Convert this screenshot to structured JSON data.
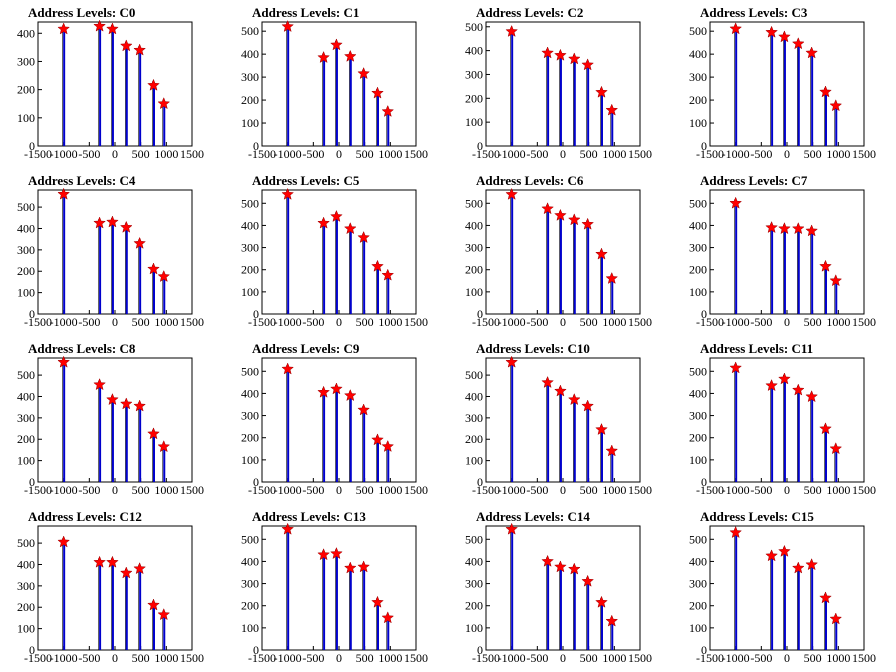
{
  "colors": {
    "bar": "#0000cc",
    "marker": "#ff0000",
    "axis": "#000000"
  },
  "chart_data": [
    {
      "type": "bar",
      "title": "Address Levels: C0",
      "xlim": [
        -1500,
        1500
      ],
      "ylim": [
        0,
        440
      ],
      "xticks": [
        -1500,
        -1000,
        -500,
        0,
        500,
        1000,
        1500
      ],
      "yticks": [
        0,
        100,
        200,
        300,
        400
      ],
      "peaks": [
        {
          "x": -1000,
          "y": 415
        },
        {
          "x": -300,
          "y": 425
        },
        {
          "x": -50,
          "y": 415
        },
        {
          "x": 220,
          "y": 355
        },
        {
          "x": 480,
          "y": 340
        },
        {
          "x": 750,
          "y": 215
        },
        {
          "x": 950,
          "y": 150
        }
      ]
    },
    {
      "type": "bar",
      "title": "Address Levels: C1",
      "xlim": [
        -1500,
        1500
      ],
      "ylim": [
        0,
        540
      ],
      "xticks": [
        -1500,
        -1000,
        -500,
        0,
        500,
        1000,
        1500
      ],
      "yticks": [
        0,
        100,
        200,
        300,
        400,
        500
      ],
      "peaks": [
        {
          "x": -1000,
          "y": 520
        },
        {
          "x": -300,
          "y": 385
        },
        {
          "x": -50,
          "y": 440
        },
        {
          "x": 220,
          "y": 390
        },
        {
          "x": 480,
          "y": 315
        },
        {
          "x": 750,
          "y": 230
        },
        {
          "x": 950,
          "y": 150
        }
      ]
    },
    {
      "type": "bar",
      "title": "Address Levels: C2",
      "xlim": [
        -1500,
        1500
      ],
      "ylim": [
        0,
        520
      ],
      "xticks": [
        -1500,
        -1000,
        -500,
        0,
        500,
        1000,
        1500
      ],
      "yticks": [
        0,
        100,
        200,
        300,
        400,
        500
      ],
      "peaks": [
        {
          "x": -1000,
          "y": 480
        },
        {
          "x": -300,
          "y": 390
        },
        {
          "x": -50,
          "y": 380
        },
        {
          "x": 220,
          "y": 365
        },
        {
          "x": 480,
          "y": 340
        },
        {
          "x": 750,
          "y": 225
        },
        {
          "x": 950,
          "y": 150
        }
      ]
    },
    {
      "type": "bar",
      "title": "Address Levels: C3",
      "xlim": [
        -1500,
        1500
      ],
      "ylim": [
        0,
        540
      ],
      "xticks": [
        -1500,
        -1000,
        -500,
        0,
        500,
        1000,
        1500
      ],
      "yticks": [
        0,
        100,
        200,
        300,
        400,
        500
      ],
      "peaks": [
        {
          "x": -1000,
          "y": 510
        },
        {
          "x": -300,
          "y": 495
        },
        {
          "x": -50,
          "y": 475
        },
        {
          "x": 220,
          "y": 445
        },
        {
          "x": 480,
          "y": 405
        },
        {
          "x": 750,
          "y": 235
        },
        {
          "x": 950,
          "y": 175
        }
      ]
    },
    {
      "type": "bar",
      "title": "Address Levels: C4",
      "xlim": [
        -1500,
        1500
      ],
      "ylim": [
        0,
        580
      ],
      "xticks": [
        -1500,
        -1000,
        -500,
        0,
        500,
        1000,
        1500
      ],
      "yticks": [
        0,
        100,
        200,
        300,
        400,
        500
      ],
      "peaks": [
        {
          "x": -1000,
          "y": 560
        },
        {
          "x": -300,
          "y": 425
        },
        {
          "x": -50,
          "y": 430
        },
        {
          "x": 220,
          "y": 405
        },
        {
          "x": 480,
          "y": 330
        },
        {
          "x": 750,
          "y": 210
        },
        {
          "x": 950,
          "y": 175
        }
      ]
    },
    {
      "type": "bar",
      "title": "Address Levels: C5",
      "xlim": [
        -1500,
        1500
      ],
      "ylim": [
        0,
        560
      ],
      "xticks": [
        -1500,
        -1000,
        -500,
        0,
        500,
        1000,
        1500
      ],
      "yticks": [
        0,
        100,
        200,
        300,
        400,
        500
      ],
      "peaks": [
        {
          "x": -1000,
          "y": 540
        },
        {
          "x": -300,
          "y": 410
        },
        {
          "x": -50,
          "y": 440
        },
        {
          "x": 220,
          "y": 385
        },
        {
          "x": 480,
          "y": 345
        },
        {
          "x": 750,
          "y": 215
        },
        {
          "x": 950,
          "y": 175
        }
      ]
    },
    {
      "type": "bar",
      "title": "Address Levels: C6",
      "xlim": [
        -1500,
        1500
      ],
      "ylim": [
        0,
        560
      ],
      "xticks": [
        -1500,
        -1000,
        -500,
        0,
        500,
        1000,
        1500
      ],
      "yticks": [
        0,
        100,
        200,
        300,
        400,
        500
      ],
      "peaks": [
        {
          "x": -1000,
          "y": 540
        },
        {
          "x": -300,
          "y": 475
        },
        {
          "x": -50,
          "y": 445
        },
        {
          "x": 220,
          "y": 425
        },
        {
          "x": 480,
          "y": 405
        },
        {
          "x": 750,
          "y": 270
        },
        {
          "x": 950,
          "y": 160
        }
      ]
    },
    {
      "type": "bar",
      "title": "Address Levels: C7",
      "xlim": [
        -1500,
        1500
      ],
      "ylim": [
        0,
        560
      ],
      "xticks": [
        -1500,
        -1000,
        -500,
        0,
        500,
        1000,
        1500
      ],
      "yticks": [
        0,
        100,
        200,
        300,
        400,
        500
      ],
      "peaks": [
        {
          "x": -1000,
          "y": 500
        },
        {
          "x": -300,
          "y": 390
        },
        {
          "x": -50,
          "y": 385
        },
        {
          "x": 220,
          "y": 385
        },
        {
          "x": 480,
          "y": 375
        },
        {
          "x": 750,
          "y": 215
        },
        {
          "x": 950,
          "y": 150
        }
      ]
    },
    {
      "type": "bar",
      "title": "Address Levels: C8",
      "xlim": [
        -1500,
        1500
      ],
      "ylim": [
        0,
        580
      ],
      "xticks": [
        -1500,
        -1000,
        -500,
        0,
        500,
        1000,
        1500
      ],
      "yticks": [
        0,
        100,
        200,
        300,
        400,
        500
      ],
      "peaks": [
        {
          "x": -1000,
          "y": 560
        },
        {
          "x": -300,
          "y": 455
        },
        {
          "x": -50,
          "y": 385
        },
        {
          "x": 220,
          "y": 365
        },
        {
          "x": 480,
          "y": 355
        },
        {
          "x": 750,
          "y": 225
        },
        {
          "x": 950,
          "y": 165
        }
      ]
    },
    {
      "type": "bar",
      "title": "Address Levels: C9",
      "xlim": [
        -1500,
        1500
      ],
      "ylim": [
        0,
        560
      ],
      "xticks": [
        -1500,
        -1000,
        -500,
        0,
        500,
        1000,
        1500
      ],
      "yticks": [
        0,
        100,
        200,
        300,
        400,
        500
      ],
      "peaks": [
        {
          "x": -1000,
          "y": 510
        },
        {
          "x": -300,
          "y": 405
        },
        {
          "x": -50,
          "y": 420
        },
        {
          "x": 220,
          "y": 390
        },
        {
          "x": 480,
          "y": 325
        },
        {
          "x": 750,
          "y": 190
        },
        {
          "x": 950,
          "y": 160
        }
      ]
    },
    {
      "type": "bar",
      "title": "Address Levels: C10",
      "xlim": [
        -1500,
        1500
      ],
      "ylim": [
        0,
        580
      ],
      "xticks": [
        -1500,
        -1000,
        -500,
        0,
        500,
        1000,
        1500
      ],
      "yticks": [
        0,
        100,
        200,
        300,
        400,
        500
      ],
      "peaks": [
        {
          "x": -1000,
          "y": 560
        },
        {
          "x": -300,
          "y": 465
        },
        {
          "x": -50,
          "y": 425
        },
        {
          "x": 220,
          "y": 385
        },
        {
          "x": 480,
          "y": 355
        },
        {
          "x": 750,
          "y": 245
        },
        {
          "x": 950,
          "y": 145
        }
      ]
    },
    {
      "type": "bar",
      "title": "Address Levels: C11",
      "xlim": [
        -1500,
        1500
      ],
      "ylim": [
        0,
        560
      ],
      "xticks": [
        -1500,
        -1000,
        -500,
        0,
        500,
        1000,
        1500
      ],
      "yticks": [
        0,
        100,
        200,
        300,
        400,
        500
      ],
      "peaks": [
        {
          "x": -1000,
          "y": 515
        },
        {
          "x": -300,
          "y": 435
        },
        {
          "x": -50,
          "y": 465
        },
        {
          "x": 220,
          "y": 415
        },
        {
          "x": 480,
          "y": 385
        },
        {
          "x": 750,
          "y": 240
        },
        {
          "x": 950,
          "y": 150
        }
      ]
    },
    {
      "type": "bar",
      "title": "Address Levels: C12",
      "xlim": [
        -1500,
        1500
      ],
      "ylim": [
        0,
        580
      ],
      "xticks": [
        -1500,
        -1000,
        -500,
        0,
        500,
        1000,
        1500
      ],
      "yticks": [
        0,
        100,
        200,
        300,
        400,
        500
      ],
      "peaks": [
        {
          "x": -1000,
          "y": 505
        },
        {
          "x": -300,
          "y": 410
        },
        {
          "x": -50,
          "y": 410
        },
        {
          "x": 220,
          "y": 360
        },
        {
          "x": 480,
          "y": 380
        },
        {
          "x": 750,
          "y": 210
        },
        {
          "x": 950,
          "y": 165
        }
      ]
    },
    {
      "type": "bar",
      "title": "Address Levels: C13",
      "xlim": [
        -1500,
        1500
      ],
      "ylim": [
        0,
        560
      ],
      "xticks": [
        -1500,
        -1000,
        -500,
        0,
        500,
        1000,
        1500
      ],
      "yticks": [
        0,
        100,
        200,
        300,
        400,
        500
      ],
      "peaks": [
        {
          "x": -1000,
          "y": 545
        },
        {
          "x": -300,
          "y": 430
        },
        {
          "x": -50,
          "y": 435
        },
        {
          "x": 220,
          "y": 370
        },
        {
          "x": 480,
          "y": 375
        },
        {
          "x": 750,
          "y": 215
        },
        {
          "x": 950,
          "y": 145
        }
      ]
    },
    {
      "type": "bar",
      "title": "Address Levels: C14",
      "xlim": [
        -1500,
        1500
      ],
      "ylim": [
        0,
        560
      ],
      "xticks": [
        -1500,
        -1000,
        -500,
        0,
        500,
        1000,
        1500
      ],
      "yticks": [
        0,
        100,
        200,
        300,
        400,
        500
      ],
      "peaks": [
        {
          "x": -1000,
          "y": 545
        },
        {
          "x": -300,
          "y": 400
        },
        {
          "x": -50,
          "y": 375
        },
        {
          "x": 220,
          "y": 365
        },
        {
          "x": 480,
          "y": 310
        },
        {
          "x": 750,
          "y": 215
        },
        {
          "x": 950,
          "y": 130
        }
      ]
    },
    {
      "type": "bar",
      "title": "Address Levels: C15",
      "xlim": [
        -1500,
        1500
      ],
      "ylim": [
        0,
        560
      ],
      "xticks": [
        -1500,
        -1000,
        -500,
        0,
        500,
        1000,
        1500
      ],
      "yticks": [
        0,
        100,
        200,
        300,
        400,
        500
      ],
      "peaks": [
        {
          "x": -1000,
          "y": 530
        },
        {
          "x": -300,
          "y": 425
        },
        {
          "x": -50,
          "y": 445
        },
        {
          "x": 220,
          "y": 370
        },
        {
          "x": 480,
          "y": 385
        },
        {
          "x": 750,
          "y": 235
        },
        {
          "x": 950,
          "y": 140
        }
      ]
    }
  ]
}
